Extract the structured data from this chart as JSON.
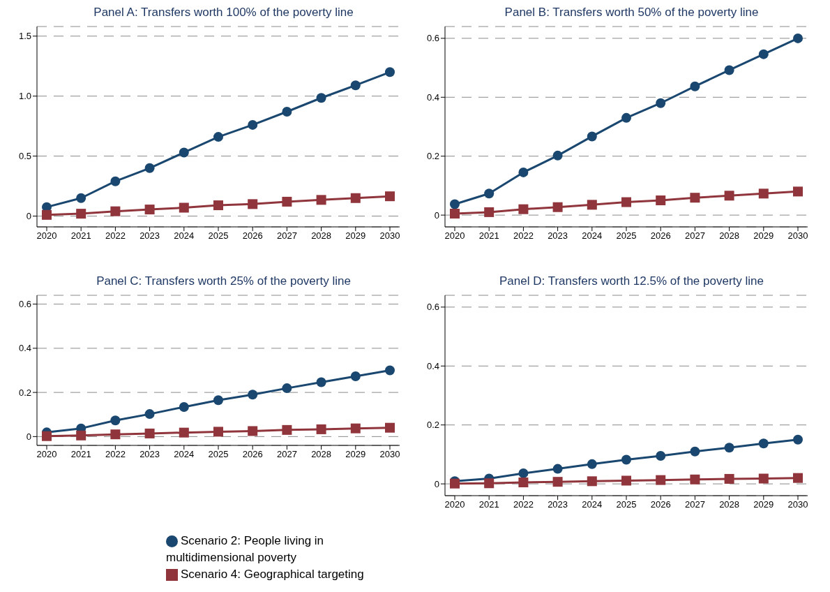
{
  "chart_data": [
    {
      "type": "line",
      "title": "Panel A: Transfers worth 100% of the poverty line",
      "categories": [
        "2020",
        "2021",
        "2022",
        "2023",
        "2024",
        "2025",
        "2026",
        "2027",
        "2028",
        "2029",
        "2030"
      ],
      "ylim": [
        -0.09,
        1.58
      ],
      "yticks": [
        0,
        {
          "value": 0.5,
          "label": "0.5"
        },
        {
          "value": 1,
          "label": "1.0"
        },
        {
          "value": 1.5,
          "label": "1.5"
        }
      ],
      "grid": "y",
      "line_style": "solid",
      "series": [
        {
          "color": "#1a476f",
          "marker": "circle",
          "values": [
            0.075,
            0.15,
            0.29,
            0.4,
            0.53,
            0.66,
            0.76,
            0.87,
            0.985,
            1.09,
            1.2
          ]
        },
        {
          "color": "#90353b",
          "marker": "square",
          "values": [
            0.01,
            0.02,
            0.04,
            0.055,
            0.07,
            0.09,
            0.1,
            0.12,
            0.135,
            0.15,
            0.165
          ]
        }
      ]
    },
    {
      "type": "line",
      "title": "Panel B: Transfers worth 50% of the poverty line",
      "categories": [
        "2020",
        "2021",
        "2022",
        "2023",
        "2024",
        "2025",
        "2026",
        "2027",
        "2028",
        "2029",
        "2030"
      ],
      "ylim": [
        -0.04,
        0.64
      ],
      "yticks": [
        0,
        0.2,
        0.4,
        0.6
      ],
      "grid": "y",
      "line_style": "solid",
      "series": [
        {
          "color": "#1a476f",
          "marker": "circle",
          "values": [
            0.037,
            0.073,
            0.145,
            0.202,
            0.267,
            0.33,
            0.38,
            0.437,
            0.492,
            0.546,
            0.6
          ]
        },
        {
          "color": "#90353b",
          "marker": "square",
          "values": [
            0.005,
            0.01,
            0.02,
            0.027,
            0.035,
            0.044,
            0.05,
            0.059,
            0.066,
            0.073,
            0.08
          ]
        }
      ]
    },
    {
      "type": "line",
      "title": "Panel C: Transfers worth 25% of the poverty line",
      "categories": [
        "2020",
        "2021",
        "2022",
        "2023",
        "2024",
        "2025",
        "2026",
        "2027",
        "2028",
        "2029",
        "2030"
      ],
      "ylim": [
        -0.04,
        0.64
      ],
      "yticks": [
        0,
        0.2,
        0.4,
        0.6
      ],
      "grid": "y",
      "legend": "bottom",
      "line_style": "solid",
      "series": [
        {
          "name": "Scenario 2: People living in multidimensional poverty",
          "color": "#1a476f",
          "marker": "circle",
          "values": [
            0.019,
            0.037,
            0.073,
            0.102,
            0.134,
            0.165,
            0.19,
            0.219,
            0.246,
            0.273,
            0.3
          ]
        },
        {
          "name": "Scenario 4: Geographical targeting",
          "color": "#90353b",
          "marker": "square",
          "values": [
            0.002,
            0.005,
            0.01,
            0.014,
            0.018,
            0.022,
            0.025,
            0.03,
            0.033,
            0.037,
            0.04
          ]
        }
      ]
    },
    {
      "type": "line",
      "title": "Panel D: Transfers worth 12.5% of the poverty line",
      "categories": [
        "2020",
        "2021",
        "2022",
        "2023",
        "2024",
        "2025",
        "2026",
        "2027",
        "2028",
        "2029",
        "2030"
      ],
      "ylim": [
        -0.04,
        0.64
      ],
      "yticks": [
        0,
        0.2,
        0.4,
        0.6
      ],
      "grid": "y",
      "line_style": "solid",
      "series": [
        {
          "color": "#1a476f",
          "marker": "circle",
          "values": [
            0.009,
            0.018,
            0.036,
            0.051,
            0.067,
            0.082,
            0.095,
            0.11,
            0.123,
            0.137,
            0.15
          ]
        },
        {
          "color": "#90353b",
          "marker": "square",
          "values": [
            0.001,
            0.002,
            0.005,
            0.007,
            0.009,
            0.011,
            0.013,
            0.015,
            0.017,
            0.018,
            0.02
          ]
        }
      ]
    }
  ]
}
